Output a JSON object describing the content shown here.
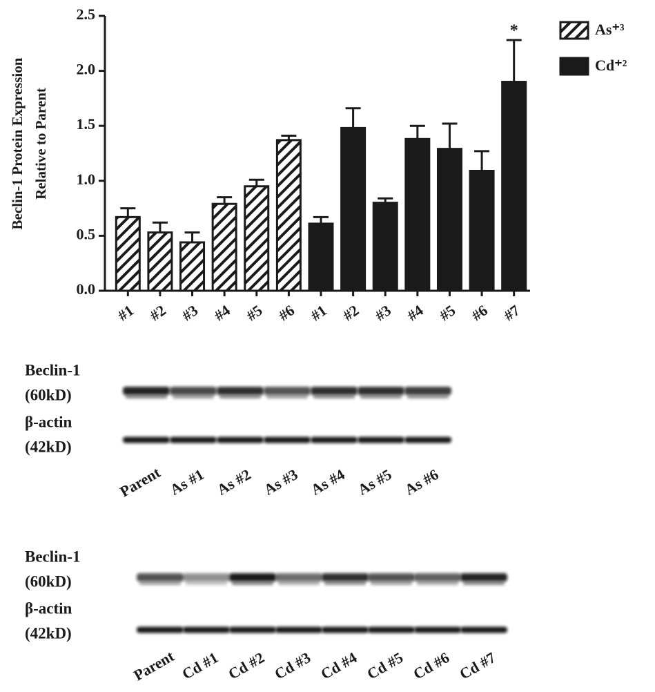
{
  "chart_data": {
    "type": "bar",
    "ylabel": [
      "Beclin-1 Protein Expression",
      "Relative to Parent"
    ],
    "categories": [
      "#1",
      "#2",
      "#3",
      "#4",
      "#5",
      "#6",
      "#1",
      "#2",
      "#3",
      "#4",
      "#5",
      "#6",
      "#7"
    ],
    "series": [
      {
        "name": "As⁺³",
        "color": "#1a1a1a",
        "hatch": true,
        "values": [
          0.67,
          0.53,
          0.44,
          0.79,
          0.95,
          1.37,
          null,
          null,
          null,
          null,
          null,
          null,
          null
        ],
        "errors": [
          0.08,
          0.09,
          0.09,
          0.06,
          0.06,
          0.04,
          null,
          null,
          null,
          null,
          null,
          null,
          null
        ]
      },
      {
        "name": "Cd⁺²",
        "color": "#1a1a1a",
        "hatch": false,
        "values": [
          null,
          null,
          null,
          null,
          null,
          null,
          0.61,
          1.48,
          0.8,
          1.38,
          1.29,
          1.09,
          1.9
        ],
        "errors": [
          null,
          null,
          null,
          null,
          null,
          null,
          0.06,
          0.18,
          0.04,
          0.12,
          0.23,
          0.18,
          0.38
        ]
      }
    ],
    "annotation": "*",
    "ylim": [
      0,
      2.5
    ],
    "yticks": [
      {
        "value": 0,
        "label": "0.0"
      },
      0.5,
      {
        "value": 1,
        "label": "1.0"
      },
      1.5,
      {
        "value": 2,
        "label": "2.0"
      },
      2.5
    ],
    "legend": "top-right",
    "grid": false
  },
  "blots": [
    {
      "rows": [
        {
          "label": "Beclin-1",
          "size": "(60kD)"
        },
        {
          "label": "β-actin",
          "size": "(42kD)"
        }
      ],
      "lanes": [
        "Parent",
        "As #1",
        "As #2",
        "As #3",
        "As #4",
        "As #5",
        "As #6"
      ]
    },
    {
      "rows": [
        {
          "label": "Beclin-1",
          "size": "(60kD)"
        },
        {
          "label": "β-actin",
          "size": "(42kD)"
        }
      ],
      "lanes": [
        "Parent",
        "Cd #1",
        "Cd #2",
        "Cd #3",
        "Cd #4",
        "Cd #5",
        "Cd #6",
        "Cd #7"
      ]
    }
  ]
}
